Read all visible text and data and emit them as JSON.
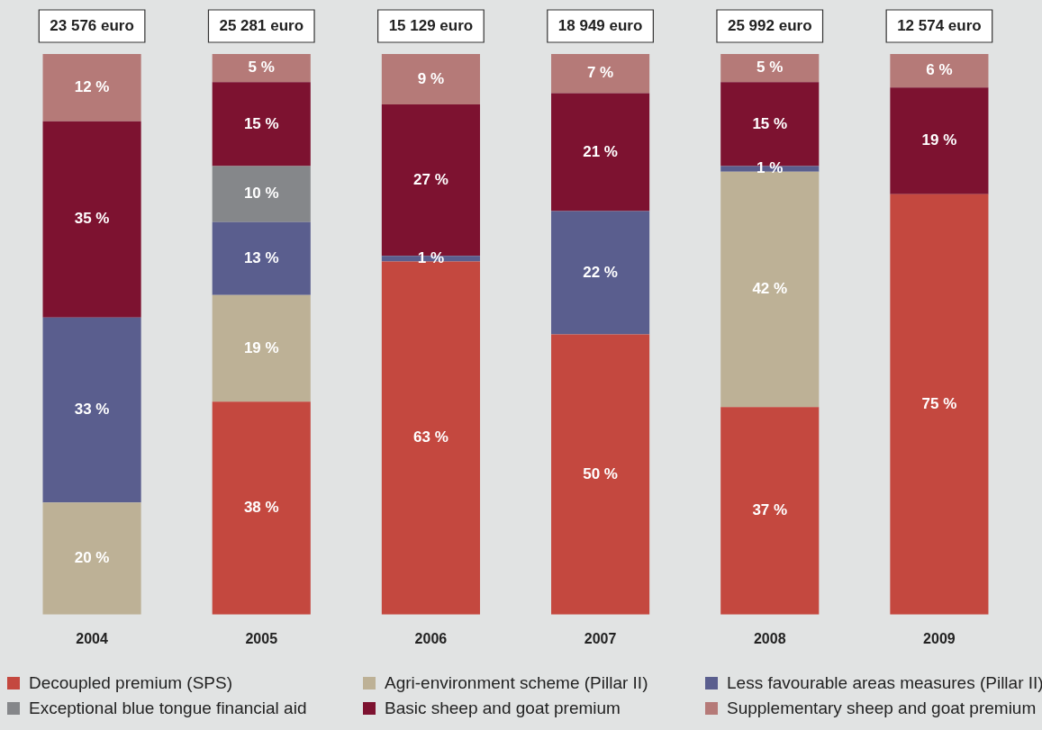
{
  "chart_data": {
    "type": "bar",
    "stacked": true,
    "categories": [
      "2004",
      "2005",
      "2006",
      "2007",
      "2008",
      "2009"
    ],
    "series": [
      {
        "name": "Decoupled premium (SPS)",
        "color": "#c4483f",
        "values": [
          null,
          38,
          63,
          50,
          37,
          75
        ],
        "value_labels": [
          null,
          "38 %",
          "63 %",
          "50 %",
          "37 %",
          "75 %"
        ]
      },
      {
        "name": "Agri-environment scheme (Pillar II)",
        "color": "#bdb196",
        "values": [
          20,
          19,
          null,
          null,
          42,
          null
        ],
        "value_labels": [
          "20 %",
          "19 %",
          null,
          null,
          "42 %",
          null
        ]
      },
      {
        "name": "Less favourable areas measures (Pillar II)",
        "color": "#5a5e8e",
        "values": [
          33,
          13,
          1,
          22,
          1,
          null
        ],
        "value_labels": [
          "33 %",
          "13 %",
          "1 %",
          "22 %",
          "1 %",
          null
        ]
      },
      {
        "name": "Exceptional blue tongue financial aid",
        "color": "#85878a",
        "values": [
          null,
          10,
          null,
          null,
          null,
          null
        ],
        "value_labels": [
          null,
          "10 %",
          null,
          null,
          null,
          null
        ]
      },
      {
        "name": "Basic sheep and goat premium",
        "color": "#7d1230",
        "values": [
          35,
          15,
          27,
          21,
          15,
          19
        ],
        "value_labels": [
          "35 %",
          "15 %",
          "27 %",
          "21 %",
          "15 %",
          "19 %"
        ]
      },
      {
        "name": "Supplementary sheep and goat premium",
        "color": "#b57a78",
        "values": [
          12,
          5,
          9,
          7,
          5,
          6
        ],
        "value_labels": [
          "12 %",
          "5 %",
          "9 %",
          "7 %",
          "5 %",
          "6 %"
        ]
      }
    ],
    "annotations": [
      "23 576 euro",
      "25 281 euro",
      "15 129 euro",
      "18 949 euro",
      "25 992 euro",
      "12 574 euro"
    ],
    "legend": "bottom",
    "grid": false
  }
}
